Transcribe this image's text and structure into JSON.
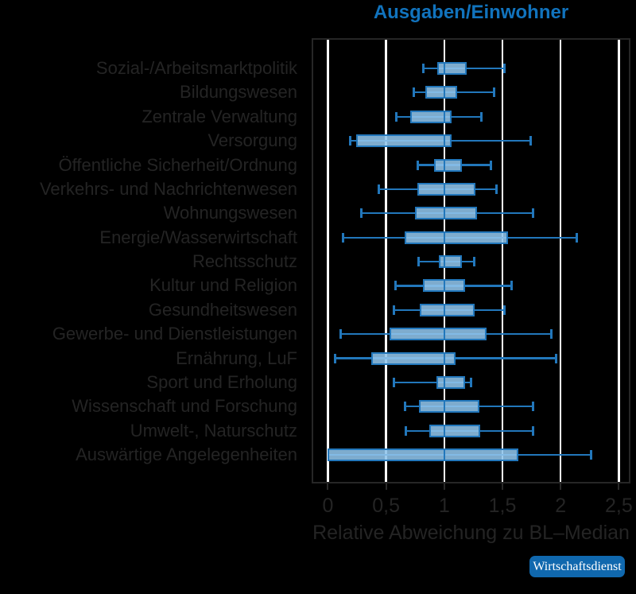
{
  "title": "Ausgaben/Einwohner",
  "xlabel": "Relative Abweichung zu BL–Median",
  "source_badge": "Wirtschaftsdienst",
  "colors": {
    "background": "#000000",
    "title": "#1173bd",
    "text": "#242424",
    "gridline": "#ffffff",
    "frame": "#262626",
    "tick_mark": "#2a2a2a",
    "box_border": "#2277bb",
    "box_fill": "rgba(144,196,235,0.88)",
    "badge_bg": "#1068ae",
    "badge_text": "#ffffff"
  },
  "chart_data": {
    "type": "boxplot",
    "orientation": "horizontal",
    "title": "Ausgaben/Einwohner",
    "xlabel": "Relative Abweichung zu BL–Median",
    "grid": true,
    "xlim": [
      -0.14,
      2.6
    ],
    "x_ticks": [
      {
        "label": "0",
        "value": 0
      },
      {
        "label": "0,5",
        "value": 0.5
      },
      {
        "label": "1",
        "value": 1
      },
      {
        "label": "1,5",
        "value": 1.5
      },
      {
        "label": "2",
        "value": 2
      },
      {
        "label": "2,5",
        "value": 2.5
      }
    ],
    "categories": [
      "Sozial-/Arbeitsmarktpolitik",
      "Bildungswesen",
      "Zentrale Verwaltung",
      "Versorgung",
      "Öffentliche Sicherheit/Ordnung",
      "Verkehrs- und Nachrichtenwesen",
      "Wohnungswesen",
      "Energie/Wasserwirtschaft",
      "Rechtsschutz",
      "Kultur und Religion",
      "Gesundheitswesen",
      "Gewerbe- und Dienstleistungen",
      "Ernährung, LuF",
      "Sport und Erholung",
      "Wissenschaft und Forschung",
      "Umwelt-, Naturschutz",
      "Auswärtige Angelegenheiten"
    ],
    "boxes": [
      {
        "category": "Sozial-/Arbeitsmarktpolitik",
        "whisker_low": 0.82,
        "q1": 0.94,
        "median": 1.0,
        "q3": 1.19,
        "whisker_high": 1.52
      },
      {
        "category": "Bildungswesen",
        "whisker_low": 0.74,
        "q1": 0.84,
        "median": 1.0,
        "q3": 1.11,
        "whisker_high": 1.43
      },
      {
        "category": "Zentrale Verwaltung",
        "whisker_low": 0.59,
        "q1": 0.71,
        "median": 1.0,
        "q3": 1.06,
        "whisker_high": 1.32
      },
      {
        "category": "Versorgung",
        "whisker_low": 0.19,
        "q1": 0.24,
        "median": 1.0,
        "q3": 1.06,
        "whisker_high": 1.74
      },
      {
        "category": "Öffentliche Sicherheit/Ordnung",
        "whisker_low": 0.77,
        "q1": 0.91,
        "median": 1.0,
        "q3": 1.15,
        "whisker_high": 1.4
      },
      {
        "category": "Verkehrs- und Nachrichtenwesen",
        "whisker_low": 0.44,
        "q1": 0.77,
        "median": 1.0,
        "q3": 1.27,
        "whisker_high": 1.45
      },
      {
        "category": "Wohnungswesen",
        "whisker_low": 0.29,
        "q1": 0.75,
        "median": 1.0,
        "q3": 1.28,
        "whisker_high": 1.76
      },
      {
        "category": "Energie/Wasserwirtschaft",
        "whisker_low": 0.13,
        "q1": 0.66,
        "median": 1.0,
        "q3": 1.55,
        "whisker_high": 2.14
      },
      {
        "category": "Rechtsschutz",
        "whisker_low": 0.78,
        "q1": 0.95,
        "median": 1.0,
        "q3": 1.15,
        "whisker_high": 1.26
      },
      {
        "category": "Kultur und Religion",
        "whisker_low": 0.58,
        "q1": 0.82,
        "median": 1.0,
        "q3": 1.18,
        "whisker_high": 1.58
      },
      {
        "category": "Gesundheitswesen",
        "whisker_low": 0.57,
        "q1": 0.79,
        "median": 1.0,
        "q3": 1.26,
        "whisker_high": 1.52
      },
      {
        "category": "Gewerbe- und Dienstleistungen",
        "whisker_low": 0.11,
        "q1": 0.53,
        "median": 1.0,
        "q3": 1.36,
        "whisker_high": 1.92
      },
      {
        "category": "Ernährung, LuF",
        "whisker_low": 0.06,
        "q1": 0.37,
        "median": 1.0,
        "q3": 1.1,
        "whisker_high": 1.96
      },
      {
        "category": "Sport und Erholung",
        "whisker_low": 0.57,
        "q1": 0.93,
        "median": 1.0,
        "q3": 1.18,
        "whisker_high": 1.23
      },
      {
        "category": "Wissenschaft und Forschung",
        "whisker_low": 0.66,
        "q1": 0.78,
        "median": 1.0,
        "q3": 1.3,
        "whisker_high": 1.76
      },
      {
        "category": "Umwelt-, Naturschutz",
        "whisker_low": 0.67,
        "q1": 0.87,
        "median": 1.0,
        "q3": 1.31,
        "whisker_high": 1.76
      },
      {
        "category": "Auswärtige Angelegenheiten",
        "whisker_low": 0.0,
        "q1": 0.0,
        "median": 1.0,
        "q3": 1.64,
        "whisker_high": 2.26
      }
    ]
  }
}
